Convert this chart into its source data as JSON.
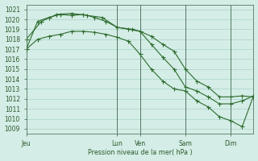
{
  "background_color": "#d4ede6",
  "grid_color": "#a8d4c8",
  "line_color": "#2d6b2d",
  "marker_color": "#2d6b2d",
  "xlabel": "Pression niveau de la mer( hPa )",
  "ylim": [
    1008.5,
    1021.5
  ],
  "yticks": [
    1009,
    1010,
    1011,
    1012,
    1013,
    1014,
    1015,
    1016,
    1017,
    1018,
    1019,
    1020,
    1021
  ],
  "xtick_labels": [
    "Jeu",
    "Lun",
    "Ven",
    "Sam",
    "Dim"
  ],
  "xtick_positions": [
    0,
    48,
    60,
    84,
    108
  ],
  "xmax": 120,
  "vlines": [
    48,
    60,
    84,
    108
  ],
  "series1_x": [
    0,
    6,
    12,
    18,
    24,
    30,
    36,
    42,
    48,
    54,
    60,
    66,
    72,
    78,
    84,
    90,
    96,
    102,
    108,
    114,
    120
  ],
  "series1_y": [
    1017.0,
    1019.8,
    1020.2,
    1020.5,
    1020.4,
    1020.5,
    1020.2,
    1019.8,
    1019.2,
    1019.0,
    1018.8,
    1018.3,
    1017.5,
    1016.8,
    1015.0,
    1013.8,
    1013.2,
    1012.2,
    1012.2,
    1012.3,
    1012.2
  ],
  "series2_x": [
    0,
    8,
    16,
    24,
    32,
    40,
    48,
    56,
    60,
    66,
    72,
    78,
    84,
    90,
    96,
    102,
    108,
    114,
    120
  ],
  "series2_y": [
    1018.0,
    1019.8,
    1020.5,
    1020.6,
    1020.4,
    1020.2,
    1019.2,
    1019.0,
    1018.8,
    1017.5,
    1016.2,
    1015.0,
    1013.2,
    1012.8,
    1012.2,
    1011.5,
    1011.5,
    1011.8,
    1012.3
  ],
  "series3_x": [
    0,
    6,
    12,
    18,
    24,
    30,
    36,
    42,
    48,
    54,
    60,
    66,
    72,
    78,
    84,
    90,
    96,
    102,
    108,
    114,
    120
  ],
  "series3_y": [
    1017.0,
    1018.0,
    1018.3,
    1018.5,
    1018.8,
    1018.8,
    1018.7,
    1018.5,
    1018.2,
    1017.8,
    1016.5,
    1015.0,
    1013.8,
    1013.0,
    1012.8,
    1011.8,
    1011.2,
    1010.2,
    1009.8,
    1009.2,
    1012.3
  ]
}
